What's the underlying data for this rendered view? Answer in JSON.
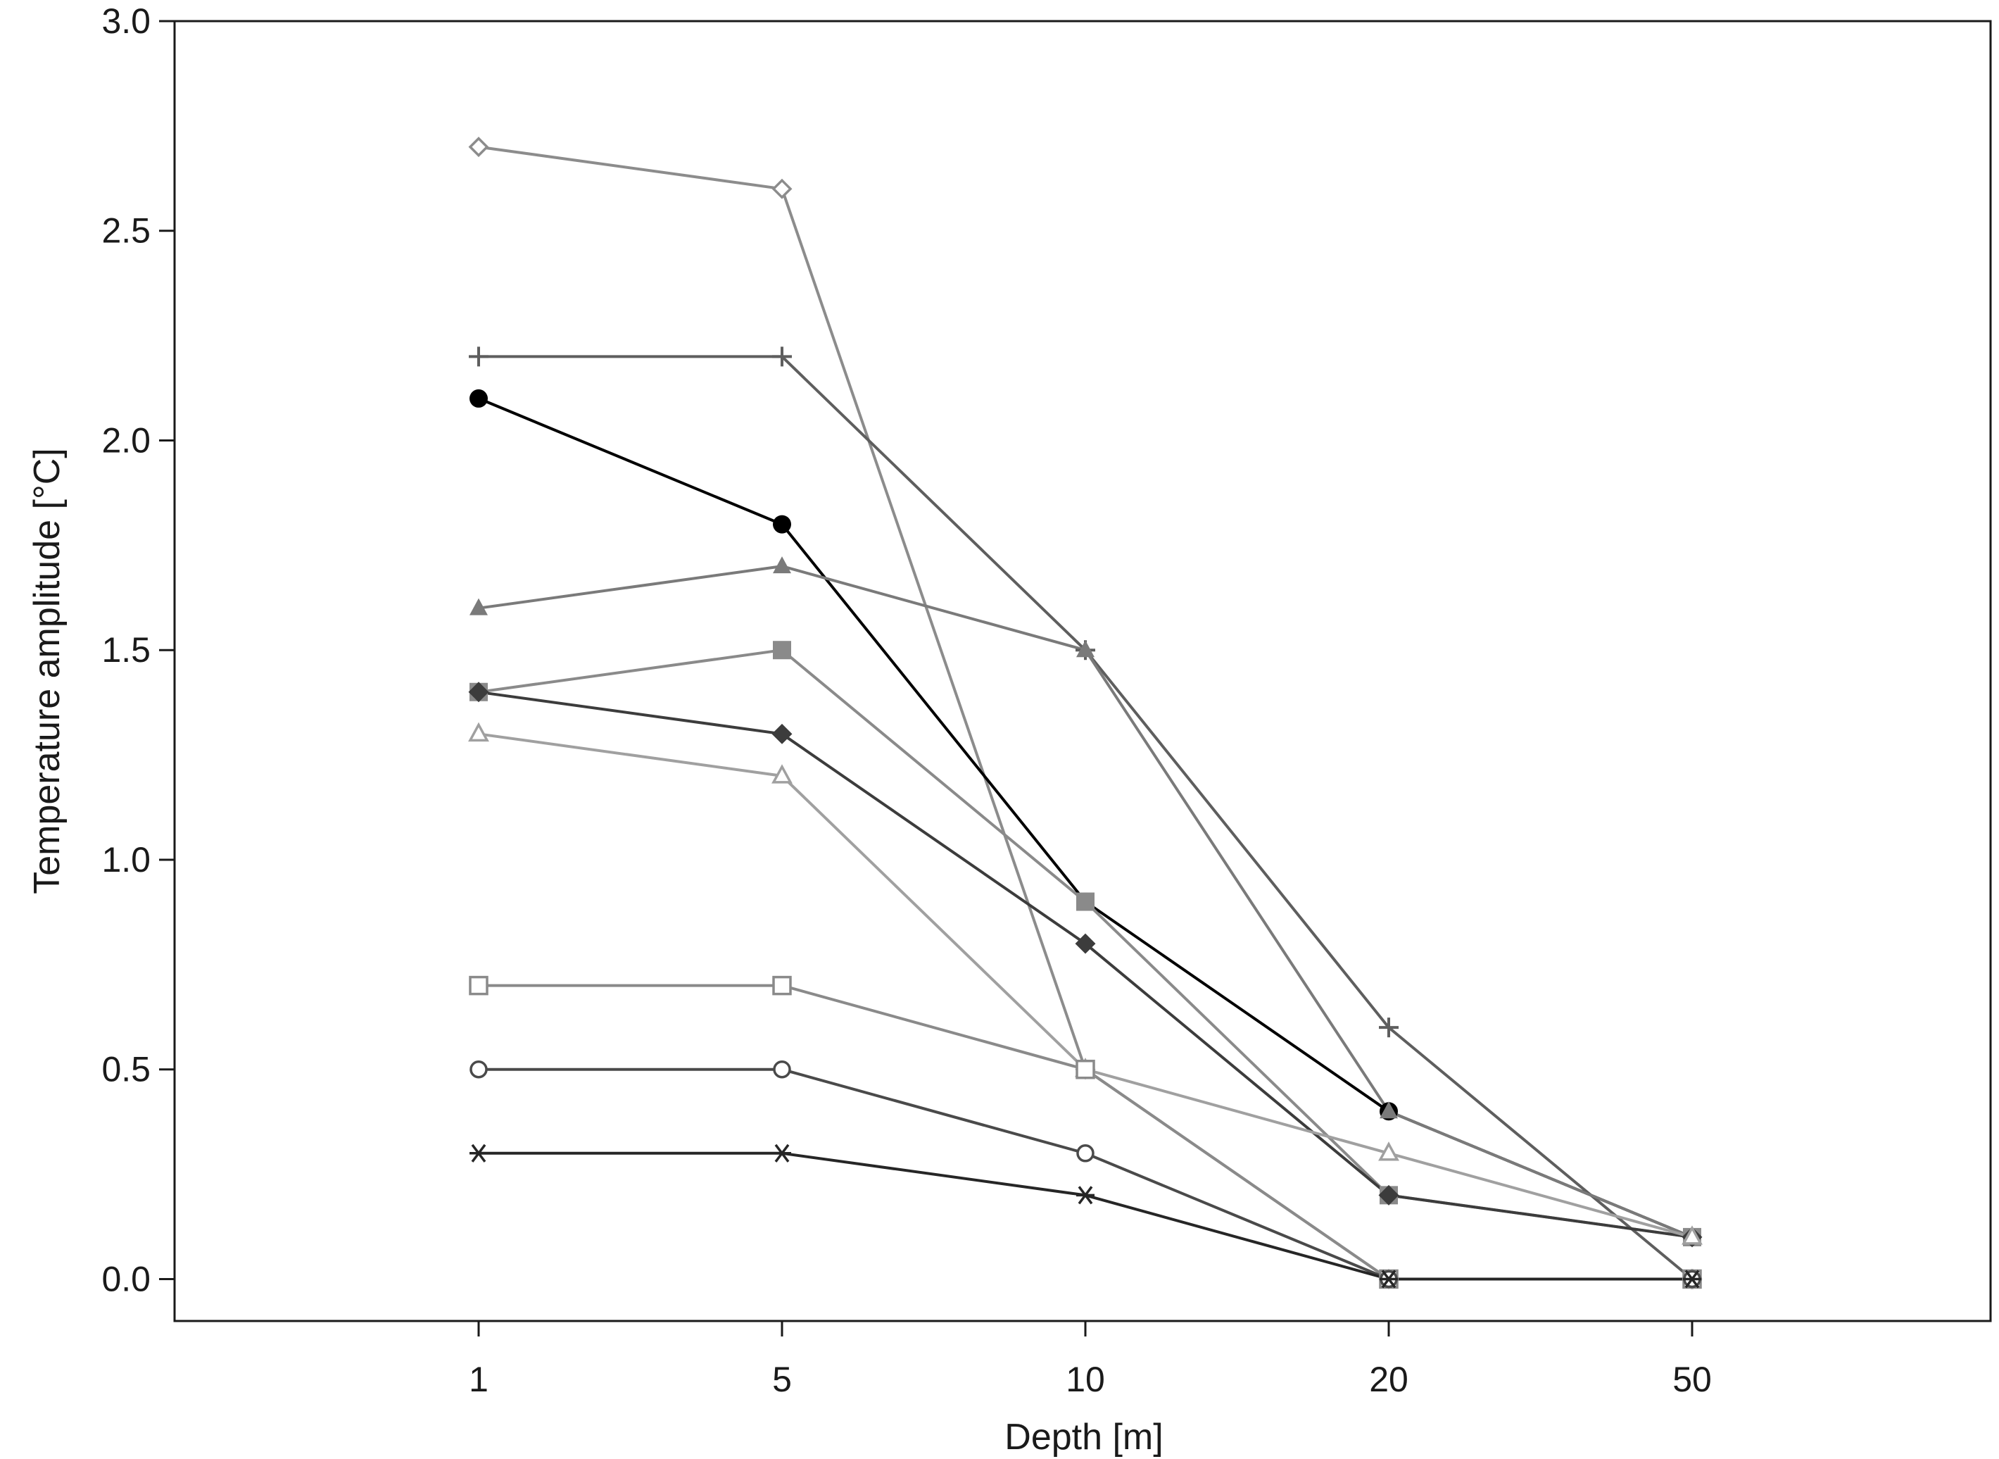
{
  "chart_data": {
    "type": "line",
    "title": "",
    "xlabel": "Depth [m]",
    "ylabel": "Temperature amplitude [°C]",
    "categories": [
      "1",
      "5",
      "10",
      "20",
      "50"
    ],
    "ylim": [
      -0.1,
      3.0
    ],
    "yticks": [
      "0.0",
      "0.5",
      "1.0",
      "1.5",
      "2.0",
      "2.5",
      "3.0"
    ],
    "grid": false,
    "legend": "none",
    "series": [
      {
        "name": "open-diamond",
        "marker": "diamond-open",
        "color": "#8c8c8c",
        "values": [
          2.7,
          2.6,
          0.5,
          0.0,
          0.0
        ]
      },
      {
        "name": "plus",
        "marker": "plus",
        "color": "#5e5e5e",
        "values": [
          2.2,
          2.2,
          1.5,
          0.6,
          0.0
        ]
      },
      {
        "name": "filled-circle",
        "marker": "circle-filled",
        "color": "#000000",
        "values": [
          2.1,
          1.8,
          0.9,
          0.4,
          0.1
        ]
      },
      {
        "name": "filled-triangle",
        "marker": "triangle-filled",
        "color": "#7a7a7a",
        "values": [
          1.6,
          1.7,
          1.5,
          0.4,
          0.1
        ]
      },
      {
        "name": "filled-square",
        "marker": "square-filled",
        "color": "#8a8a8a",
        "values": [
          1.4,
          1.5,
          0.9,
          0.2,
          0.1
        ]
      },
      {
        "name": "filled-diamond",
        "marker": "diamond-filled",
        "color": "#3c3c3c",
        "values": [
          1.4,
          1.3,
          0.8,
          0.2,
          0.1
        ]
      },
      {
        "name": "open-triangle",
        "marker": "triangle-open",
        "color": "#a0a0a0",
        "values": [
          1.3,
          1.2,
          0.5,
          0.3,
          0.1
        ]
      },
      {
        "name": "open-square",
        "marker": "square-open",
        "color": "#8a8a8a",
        "values": [
          0.7,
          0.7,
          0.5,
          0.0,
          0.0
        ]
      },
      {
        "name": "open-circle",
        "marker": "circle-open",
        "color": "#4a4a4a",
        "values": [
          0.5,
          0.5,
          0.3,
          0.0,
          0.0
        ]
      },
      {
        "name": "asterisk",
        "marker": "asterisk",
        "color": "#262626",
        "values": [
          0.3,
          0.3,
          0.2,
          0.0,
          0.0
        ]
      }
    ]
  }
}
